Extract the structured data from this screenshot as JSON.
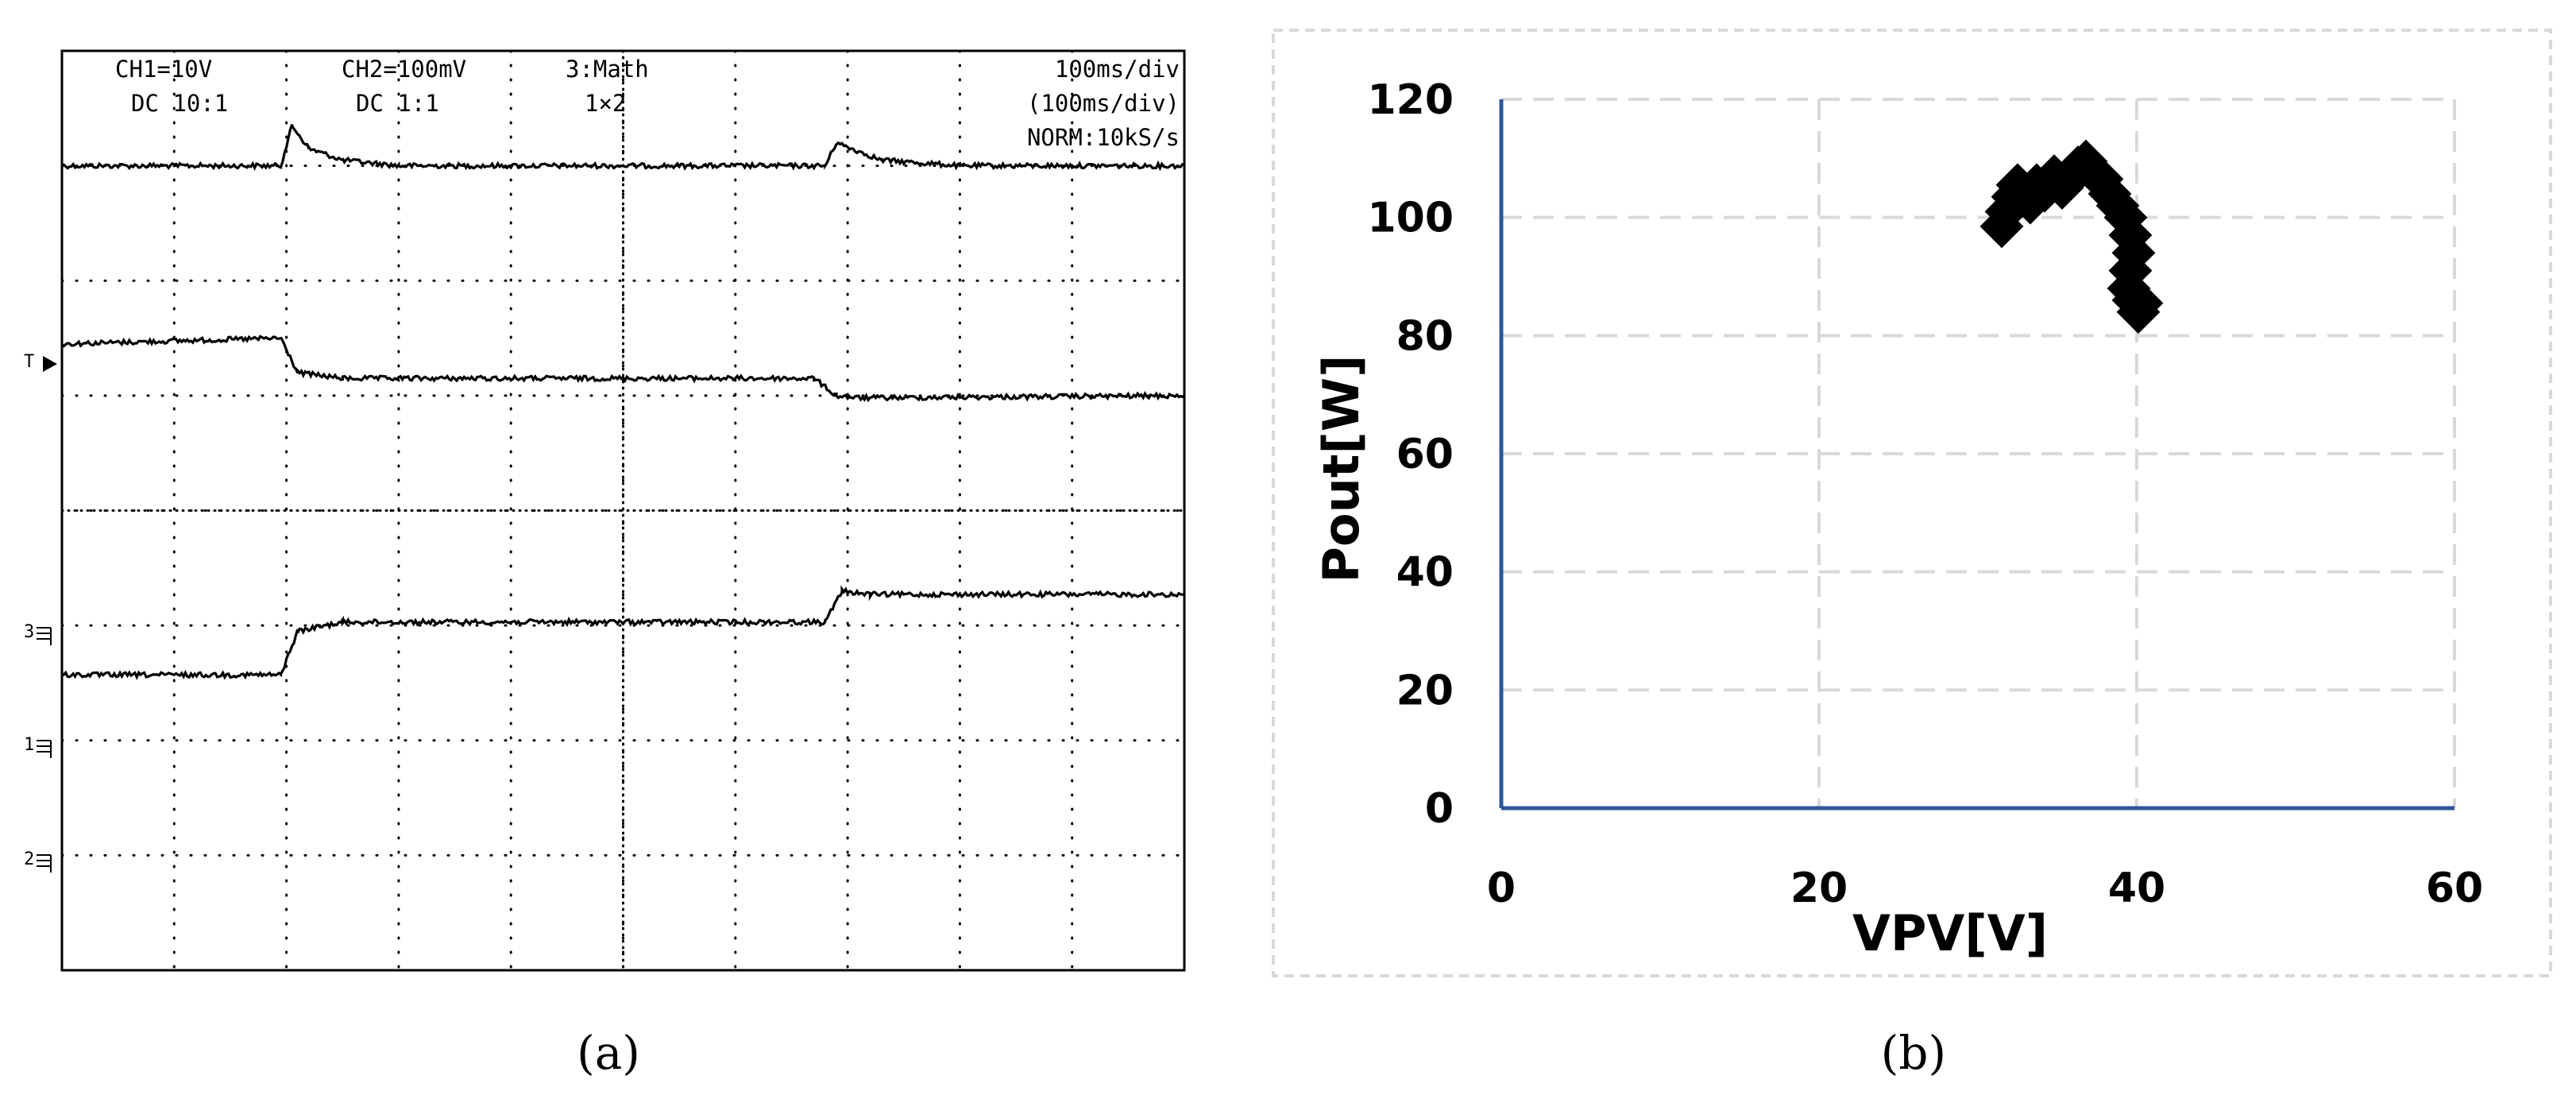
{
  "panel_a": {
    "caption": "(a)",
    "header": {
      "ch1_line1": "CH1=10V",
      "ch1_line2": "DC  10:1",
      "ch2_line1": "CH2=100mV",
      "ch2_line2": "DC  1:1",
      "math_line1": "3:Math",
      "math_line2": "1×2",
      "time_line1": "100ms/div",
      "time_line2": "(100ms/div)",
      "time_line3": "NORM:10kS/s"
    },
    "markers": {
      "trigger": "T",
      "ch3": "3",
      "ch1": "1",
      "ch2": "2"
    }
  },
  "panel_b": {
    "caption": "(b)"
  },
  "chart_data": [
    {
      "type": "line",
      "subtype": "oscilloscope",
      "grid": true,
      "x_divisions": 10,
      "y_divisions": 8,
      "x_range": [
        0,
        10
      ],
      "y_range": [
        0,
        8
      ],
      "series": [
        {
          "values": [
            [
              0,
              1.0
            ],
            [
              1.95,
              1.0
            ],
            [
              2.05,
              0.65
            ],
            [
              2.2,
              0.85
            ],
            [
              2.5,
              0.95
            ],
            [
              3,
              1.0
            ],
            [
              6.8,
              1.0
            ],
            [
              6.9,
              0.8
            ],
            [
              7.3,
              0.95
            ],
            [
              8,
              1.0
            ],
            [
              10,
              1.0
            ]
          ]
        },
        {
          "values": [
            [
              0,
              2.55
            ],
            [
              1.95,
              2.5
            ],
            [
              2.1,
              2.8
            ],
            [
              2.5,
              2.85
            ],
            [
              6.7,
              2.85
            ],
            [
              6.9,
              3.0
            ],
            [
              7.1,
              3.02
            ],
            [
              10,
              3.0
            ]
          ]
        },
        {
          "values": [
            [
              0,
              5.43
            ],
            [
              1.95,
              5.43
            ],
            [
              2.1,
              5.05
            ],
            [
              2.5,
              4.97
            ],
            [
              6.8,
              4.97
            ],
            [
              6.95,
              4.7
            ],
            [
              7.2,
              4.73
            ],
            [
              10,
              4.73
            ]
          ]
        }
      ]
    },
    {
      "type": "scatter",
      "title": "",
      "xlabel": "VPV[V]",
      "ylabel": "Pout[W]",
      "xlim": [
        0,
        60
      ],
      "ylim": [
        0,
        120
      ],
      "xticks": [
        0,
        20,
        40,
        60
      ],
      "yticks": [
        0,
        20,
        40,
        60,
        80,
        100,
        120
      ],
      "grid": true,
      "marker": "diamond-x",
      "series": [
        {
          "values": [
            [
              31.5,
              98.5
            ],
            [
              31.8,
              101
            ],
            [
              32.2,
              103.5
            ],
            [
              32.5,
              105.5
            ],
            [
              33,
              104
            ],
            [
              33.3,
              102.5
            ],
            [
              33.7,
              105.5
            ],
            [
              34.2,
              104.5
            ],
            [
              34.8,
              107
            ],
            [
              35.3,
              105
            ],
            [
              35.8,
              106.5
            ],
            [
              36.3,
              108.5
            ],
            [
              36.8,
              109.5
            ],
            [
              37.3,
              107.5
            ],
            [
              37.8,
              106.5
            ],
            [
              38.3,
              104
            ],
            [
              38.8,
              102
            ],
            [
              39.3,
              100
            ],
            [
              39.6,
              97
            ],
            [
              39.8,
              94
            ],
            [
              39.6,
              91
            ],
            [
              39.5,
              88
            ],
            [
              39.8,
              86
            ],
            [
              40.1,
              84
            ],
            [
              40.3,
              85.5
            ]
          ]
        }
      ]
    }
  ]
}
